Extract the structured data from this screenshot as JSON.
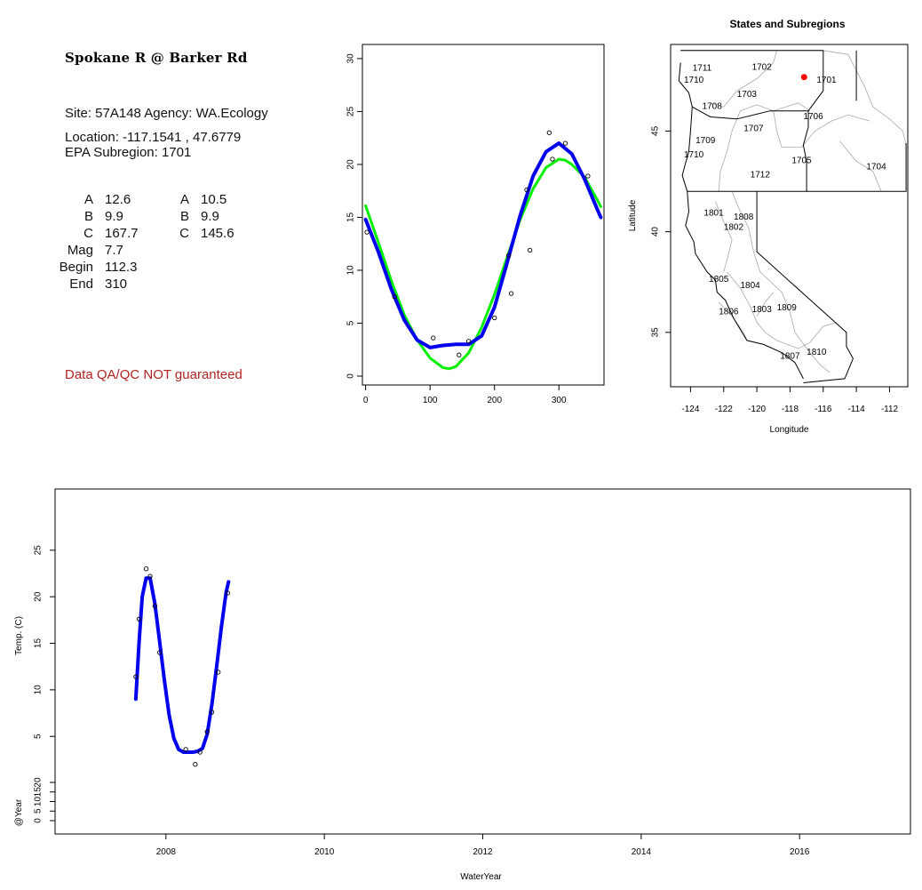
{
  "site": {
    "title": "Spokane R @ Barker Rd",
    "site_line": "Site: 57A148      Agency: WA.Ecology",
    "location_line": "Location: -117.1541 , 47.6779",
    "subregion_line": "EPA Subregion: 1701",
    "qa_note": "Data QA/QC NOT guaranteed"
  },
  "params": {
    "col1": [
      {
        "label": "A",
        "value": "12.6"
      },
      {
        "label": "B",
        "value": "9.9"
      },
      {
        "label": "C",
        "value": "167.7"
      },
      {
        "label": "Mag",
        "value": "7.7"
      },
      {
        "label": "Begin",
        "value": "112.3"
      },
      {
        "label": "End",
        "value": "310"
      }
    ],
    "col2": [
      {
        "label": "A",
        "value": "10.5"
      },
      {
        "label": "B",
        "value": "9.9"
      },
      {
        "label": "C",
        "value": "145.6"
      }
    ]
  },
  "chart_data": [
    {
      "type": "scatter",
      "title": "",
      "xlabel": "",
      "ylabel": "",
      "xlim": [
        -5,
        370
      ],
      "ylim": [
        0,
        31
      ],
      "xticks": [
        "0",
        "100",
        "200",
        "300"
      ],
      "yticks": [
        "0",
        "5",
        "10",
        "15",
        "20",
        "25",
        "30"
      ],
      "points": [
        [
          2,
          13.6
        ],
        [
          45,
          7.5
        ],
        [
          105,
          3.6
        ],
        [
          145,
          2.0
        ],
        [
          160,
          3.3
        ],
        [
          200,
          5.5
        ],
        [
          222,
          11.4
        ],
        [
          226,
          7.8
        ],
        [
          250,
          17.6
        ],
        [
          255,
          11.9
        ],
        [
          285,
          23.0
        ],
        [
          290,
          20.5
        ],
        [
          310,
          22.0
        ],
        [
          345,
          18.9
        ]
      ],
      "series": [
        {
          "color": "#00ee00",
          "x": [
            0,
            20,
            40,
            60,
            80,
            100,
            120,
            130,
            140,
            160,
            180,
            200,
            220,
            240,
            260,
            280,
            300,
            310,
            320,
            340,
            360,
            365
          ],
          "values": [
            16.1,
            12.6,
            9.0,
            5.8,
            3.4,
            1.7,
            0.8,
            0.7,
            0.9,
            2.2,
            4.6,
            7.7,
            11.3,
            14.8,
            17.7,
            19.7,
            20.5,
            20.4,
            20.0,
            18.8,
            16.6,
            16.0
          ]
        },
        {
          "color": "#0000ee",
          "x": [
            0,
            20,
            40,
            60,
            80,
            100,
            120,
            140,
            160,
            180,
            200,
            220,
            240,
            260,
            280,
            300,
            320,
            340,
            360,
            365
          ],
          "values": [
            14.8,
            11.7,
            8.2,
            5.3,
            3.4,
            2.7,
            2.9,
            3.0,
            3.0,
            3.8,
            6.5,
            10.8,
            15.2,
            18.9,
            21.2,
            22.0,
            21.0,
            18.6,
            15.7,
            15.0
          ]
        }
      ]
    },
    {
      "type": "map",
      "title": "States and Subregions",
      "xlabel": "Longitude",
      "ylabel": "Latitude",
      "xlim": [
        -125.2,
        -110.9
      ],
      "ylim": [
        32.3,
        49.3
      ],
      "xticks": [
        "-124",
        "-122",
        "-120",
        "-118",
        "-116",
        "-114",
        "-112"
      ],
      "yticks": [
        "35",
        "40",
        "45"
      ],
      "site_point": [
        -117.15,
        47.68
      ],
      "regions": [
        {
          "label": "1711",
          "lon": -123.3,
          "lat": 48.0
        },
        {
          "label": "1702",
          "lon": -119.7,
          "lat": 48.05
        },
        {
          "label": "1701",
          "lon": -115.8,
          "lat": 47.4
        },
        {
          "label": "1710",
          "lon": -123.8,
          "lat": 47.4
        },
        {
          "label": "1703",
          "lon": -120.6,
          "lat": 46.7
        },
        {
          "label": "1708",
          "lon": -122.7,
          "lat": 46.1
        },
        {
          "label": "1706",
          "lon": -116.6,
          "lat": 45.6
        },
        {
          "label": "1707",
          "lon": -120.2,
          "lat": 45.0
        },
        {
          "label": "1709",
          "lon": -123.1,
          "lat": 44.4
        },
        {
          "label": "1710",
          "lon": -123.8,
          "lat": 43.7
        },
        {
          "label": "1705",
          "lon": -117.3,
          "lat": 43.4
        },
        {
          "label": "1704",
          "lon": -112.8,
          "lat": 43.1
        },
        {
          "label": "1712",
          "lon": -119.8,
          "lat": 42.7
        },
        {
          "label": "1801",
          "lon": -122.6,
          "lat": 40.8
        },
        {
          "label": "1808",
          "lon": -120.8,
          "lat": 40.6
        },
        {
          "label": "1802",
          "lon": -121.4,
          "lat": 40.1
        },
        {
          "label": "1805",
          "lon": -122.3,
          "lat": 37.5
        },
        {
          "label": "1804",
          "lon": -120.4,
          "lat": 37.2
        },
        {
          "label": "1809",
          "lon": -118.2,
          "lat": 36.1
        },
        {
          "label": "1806",
          "lon": -121.7,
          "lat": 35.9
        },
        {
          "label": "1803",
          "lon": -119.7,
          "lat": 36.0
        },
        {
          "label": "1810",
          "lon": -116.4,
          "lat": 33.9
        },
        {
          "label": "1807",
          "lon": -118.0,
          "lat": 33.7
        }
      ]
    },
    {
      "type": "line",
      "title": "",
      "xlabel": "WaterYear",
      "ylabel": "Temp. (C)",
      "ylabel2": "@Year",
      "xlim": [
        2006.6,
        2017.4
      ],
      "ylim": [
        1.2,
        31
      ],
      "xticks": [
        "2008",
        "2010",
        "2012",
        "2014",
        "2016"
      ],
      "yticks": [
        "5",
        "10",
        "15",
        "20",
        "25"
      ],
      "yticks2": [
        "0",
        "5",
        "10",
        "15",
        "20"
      ],
      "points": [
        [
          2007.62,
          11.4
        ],
        [
          2007.66,
          17.6
        ],
        [
          2007.75,
          23.0
        ],
        [
          2007.8,
          22.2
        ],
        [
          2007.86,
          19.0
        ],
        [
          2007.92,
          14.0
        ],
        [
          2008.25,
          3.6
        ],
        [
          2008.37,
          2.0
        ],
        [
          2008.43,
          3.3
        ],
        [
          2008.52,
          5.5
        ],
        [
          2008.58,
          7.6
        ],
        [
          2008.66,
          11.9
        ],
        [
          2008.78,
          20.4
        ]
      ],
      "series": [
        {
          "color": "#0000ee",
          "x": [
            2007.62,
            2007.66,
            2007.7,
            2007.75,
            2007.8,
            2007.86,
            2007.92,
            2007.98,
            2008.04,
            2008.1,
            2008.16,
            2008.22,
            2008.28,
            2008.34,
            2008.4,
            2008.46,
            2008.52,
            2008.58,
            2008.64,
            2008.7,
            2008.76,
            2008.79
          ],
          "values": [
            9.0,
            15.0,
            20.0,
            22.0,
            22.0,
            19.3,
            15.2,
            11.0,
            7.3,
            4.8,
            3.6,
            3.3,
            3.3,
            3.3,
            3.4,
            3.7,
            5.2,
            8.4,
            12.5,
            16.8,
            20.5,
            21.6
          ]
        }
      ]
    }
  ]
}
